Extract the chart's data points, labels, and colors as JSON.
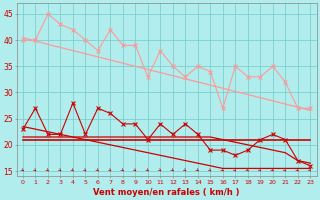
{
  "xlabel": "Vent moyen/en rafales ( km/h )",
  "background_color": "#b2eded",
  "grid_color": "#7ecece",
  "x": [
    0,
    1,
    2,
    3,
    4,
    5,
    6,
    7,
    8,
    9,
    10,
    11,
    12,
    13,
    14,
    15,
    16,
    17,
    18,
    19,
    20,
    21,
    22,
    23
  ],
  "rafales_line": [
    40,
    40,
    45,
    43,
    42,
    40,
    38,
    42,
    39,
    39,
    33,
    38,
    35,
    33,
    35,
    34,
    27,
    35,
    33,
    33,
    35,
    32,
    27,
    27
  ],
  "rafales_trend": [
    40.5,
    39.8,
    39.2,
    38.6,
    38.0,
    37.4,
    36.8,
    36.2,
    35.6,
    35.0,
    34.4,
    33.8,
    33.2,
    32.6,
    32.0,
    31.4,
    30.8,
    30.2,
    29.6,
    29.0,
    28.4,
    27.8,
    27.2,
    26.6
  ],
  "moyen_line": [
    23,
    27,
    22,
    22,
    28,
    22,
    27,
    26,
    24,
    24,
    21,
    24,
    22,
    24,
    22,
    19,
    19,
    18,
    19,
    21,
    22,
    21,
    17,
    16
  ],
  "moyen_trend1": [
    23.5,
    23.0,
    22.5,
    22.0,
    21.5,
    21.0,
    20.5,
    20.0,
    19.5,
    19.0,
    18.5,
    18.0,
    17.5,
    17.0,
    16.5,
    16.0,
    15.5,
    15.5,
    15.5,
    15.5,
    15.5,
    15.5,
    15.5,
    15.5
  ],
  "moyen_flat": [
    21.5,
    21.5,
    21.5,
    21.5,
    21.5,
    21.5,
    21.5,
    21.5,
    21.5,
    21.5,
    21.5,
    21.5,
    21.5,
    21.5,
    21.5,
    21.5,
    21.0,
    20.5,
    20.0,
    19.5,
    19.0,
    18.5,
    17.0,
    16.5
  ],
  "moyen_flat2": [
    21,
    21,
    21,
    21,
    21,
    21,
    21,
    21,
    21,
    21,
    21,
    21,
    21,
    21,
    21,
    21,
    21,
    21,
    21,
    21,
    21,
    21,
    21,
    21
  ],
  "ylim": [
    14.0,
    47.0
  ],
  "yticks": [
    15,
    20,
    25,
    30,
    35,
    40,
    45
  ],
  "color_pink": "#ff9999",
  "color_red": "#cc0000",
  "figsize": [
    3.2,
    2.0
  ],
  "dpi": 100
}
